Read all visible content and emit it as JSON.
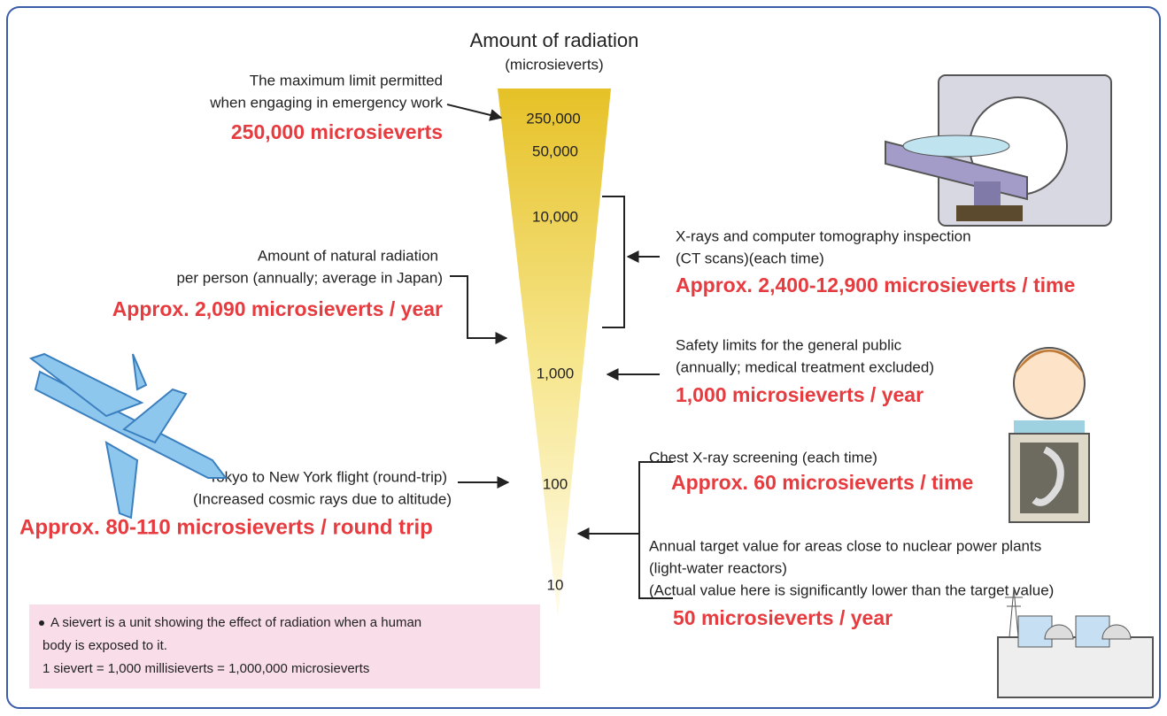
{
  "title": "Amount of radiation",
  "subtitle": "(microsieverts)",
  "scale": [
    "250,000",
    "50,000",
    "10,000",
    "1,000",
    "100",
    "10"
  ],
  "items": [
    {
      "lines": [
        "The maximum limit permitted",
        "when engaging in emergency work"
      ],
      "value": "250,000 microsieverts"
    },
    {
      "lines": [
        "Amount of natural radiation",
        "per person (annually; average in Japan)"
      ],
      "value": "Approx. 2,090 microsieverts / year"
    },
    {
      "lines": [
        "Tokyo to New York flight (round-trip)",
        "(Increased cosmic rays due to altitude)"
      ],
      "value": "Approx. 80-110 microsieverts / round trip"
    },
    {
      "lines": [
        "X-rays and computer tomography inspection",
        "(CT scans)(each time)"
      ],
      "value": "Approx. 2,400-12,900 microsieverts / time"
    },
    {
      "lines": [
        "Safety limits for the general public",
        "(annually; medical treatment excluded)"
      ],
      "value": "1,000 microsieverts / year"
    },
    {
      "lines": [
        "Chest X-ray screening (each time)"
      ],
      "value": "Approx. 60 microsieverts / time"
    },
    {
      "lines": [
        "Annual target value for areas close to nuclear power plants",
        "(light-water reactors)",
        "(Actual value here is significantly lower than the target value)"
      ],
      "value": "50 microsieverts / year"
    }
  ],
  "note": {
    "lines": [
      "A sievert is a unit showing the effect of radiation when a human",
      "body is exposed to it.",
      "1 sievert = 1,000 millisieverts = 1,000,000 microsieverts"
    ]
  }
}
